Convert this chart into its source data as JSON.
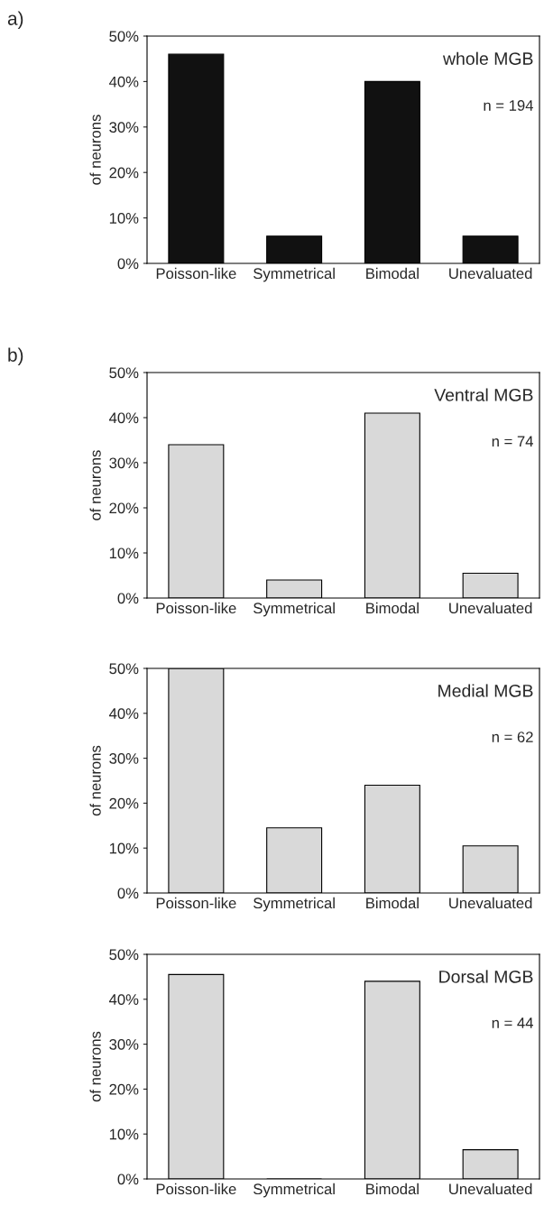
{
  "chart_data": [
    {
      "type": "bar",
      "title": "whole MGB",
      "ylabel": "of neurons",
      "annotations": [
        "a)",
        "n = 194"
      ],
      "categories": [
        "Poisson-like",
        "Symmetrical",
        "Bimodal",
        "Unevaluated"
      ],
      "values": [
        46,
        6,
        40,
        6
      ],
      "color": "#111111",
      "ylim": [
        0,
        50
      ],
      "yticks": [
        {
          "value": 0,
          "label": "0%"
        },
        {
          "value": 10,
          "label": "10%"
        },
        {
          "value": 20,
          "label": "20%"
        },
        {
          "value": 30,
          "label": "30%"
        },
        {
          "value": 40,
          "label": "40%"
        },
        {
          "value": 50,
          "label": "50%"
        }
      ],
      "grid": false,
      "legend": false
    },
    {
      "type": "bar",
      "title": "Ventral MGB",
      "ylabel": "of neurons",
      "annotations": [
        "b)",
        "n = 74"
      ],
      "categories": [
        "Poisson-like",
        "Symmetrical",
        "Bimodal",
        "Unevaluated"
      ],
      "values": [
        34,
        4,
        41,
        5.5
      ],
      "color": "#d9d9d9",
      "ylim": [
        0,
        50
      ],
      "yticks": [
        {
          "value": 0,
          "label": "0%"
        },
        {
          "value": 10,
          "label": "10%"
        },
        {
          "value": 20,
          "label": "20%"
        },
        {
          "value": 30,
          "label": "30%"
        },
        {
          "value": 40,
          "label": "40%"
        },
        {
          "value": 50,
          "label": "50%"
        }
      ],
      "grid": false,
      "legend": false
    },
    {
      "type": "bar",
      "title": "Medial MGB",
      "ylabel": "of neurons",
      "annotations": [
        "n = 62"
      ],
      "categories": [
        "Poisson-like",
        "Symmetrical",
        "Bimodal",
        "Unevaluated"
      ],
      "values": [
        50,
        14.5,
        24,
        10.5
      ],
      "color": "#d9d9d9",
      "ylim": [
        0,
        50
      ],
      "yticks": [
        {
          "value": 0,
          "label": "0%"
        },
        {
          "value": 10,
          "label": "10%"
        },
        {
          "value": 20,
          "label": "20%"
        },
        {
          "value": 30,
          "label": "30%"
        },
        {
          "value": 40,
          "label": "40%"
        },
        {
          "value": 50,
          "label": "50%"
        }
      ],
      "grid": false,
      "legend": false
    },
    {
      "type": "bar",
      "title": "Dorsal MGB",
      "ylabel": "of neurons",
      "annotations": [
        "n = 44"
      ],
      "categories": [
        "Poisson-like",
        "Symmetrical",
        "Bimodal",
        "Unevaluated"
      ],
      "values": [
        45.5,
        0,
        44,
        6.5
      ],
      "color": "#d9d9d9",
      "ylim": [
        0,
        50
      ],
      "yticks": [
        {
          "value": 0,
          "label": "0%"
        },
        {
          "value": 10,
          "label": "10%"
        },
        {
          "value": 20,
          "label": "20%"
        },
        {
          "value": 30,
          "label": "30%"
        },
        {
          "value": 40,
          "label": "40%"
        },
        {
          "value": 50,
          "label": "50%"
        }
      ],
      "grid": false,
      "legend": false
    }
  ]
}
